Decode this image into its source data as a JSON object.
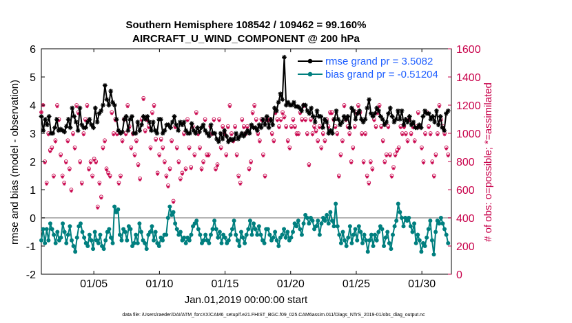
{
  "chart_data": {
    "type": "line",
    "title": "Southern Hemisphere 108542 / 109462 = 99.160%",
    "subtitle": "AIRCRAFT_U_WIND_COMPONENT @ 200 hPa",
    "ylabel": "rmse and bias (model - observation)",
    "y2label": "# of obs: o=possible; *=assimilated",
    "xlabel": "Jan.01,2019 00:00:00 start",
    "footer": "data file: /Users/raeder/DAI/ATM_forcXX/CAM6_setup/f.e21.FHIST_BGC.f09_025.CAM6assim.011/Diags_NTrS_2019-01/obs_diag_output.nc",
    "xlim": [
      1,
      32.25
    ],
    "ylim": [
      -2,
      6
    ],
    "y2lim": [
      0,
      1600
    ],
    "x_ticks": [
      5,
      10,
      15,
      20,
      25,
      30
    ],
    "x_tick_labels": [
      "01/05",
      "01/10",
      "01/15",
      "01/20",
      "01/25",
      "01/30"
    ],
    "y_ticks": [
      -2,
      -1,
      0,
      1,
      2,
      3,
      4,
      5,
      6
    ],
    "y_tick_labels": [
      "-2",
      "-1",
      "0",
      "1",
      "2",
      "3",
      "4",
      "5",
      "6"
    ],
    "y2_ticks": [
      0,
      200,
      400,
      600,
      800,
      1000,
      1200,
      1400,
      1600
    ],
    "y2_tick_labels": [
      "0",
      "200",
      "400",
      "600",
      "800",
      "1000",
      "1200",
      "1400",
      "1600"
    ],
    "legend_position": "top-right",
    "series": [
      {
        "name": "rmse grand pr = 3.5082",
        "color": "#000000",
        "marker": "asterisk",
        "values": [
          3.6,
          3.1,
          3.5,
          3.3,
          3.6,
          3.0,
          3.0,
          3.2,
          3.5,
          3.1,
          3.15,
          3.1,
          3.05,
          3.25,
          3.5,
          3.2,
          3.9,
          3.6,
          3.4,
          3.1,
          3.9,
          3.3,
          3.2,
          3.2,
          3.4,
          3.5,
          3.3,
          3.2,
          3.9,
          3.4,
          3.7,
          3.8,
          4.0,
          4.7,
          4.2,
          4.0,
          4.5,
          4.1,
          4.0,
          3.5,
          3.1,
          3.0,
          3.05,
          3.5,
          3.6,
          3.1,
          3.5,
          3.6,
          3.0,
          3.0,
          3.4,
          3.1,
          3.3,
          3.6,
          3.5,
          3.6,
          3.4,
          3.1,
          3.4,
          3.1,
          3.0,
          3.5,
          3.5,
          3.0,
          3.1,
          3.3,
          3.3,
          3.2,
          3.4,
          3.6,
          3.3,
          3.1,
          3.4,
          3.3,
          3.4,
          3.1,
          3.0,
          3.0,
          3.35,
          3.1,
          3.0,
          3.2,
          3.05,
          3.2,
          3.3,
          3.1,
          3.0,
          2.9,
          3.3,
          3.0,
          3.0,
          2.8,
          2.7,
          3.0,
          2.8,
          3.1,
          2.9,
          2.7,
          2.8,
          2.75,
          2.8,
          3.0,
          2.8,
          2.9,
          3.0,
          2.9,
          3.0,
          3.1,
          3.0,
          3.3,
          3.2,
          3.2,
          3.1,
          3.3,
          3.2,
          3.5,
          3.3,
          3.6,
          3.2,
          3.5,
          3.3,
          3.9,
          3.8,
          4.1,
          4.4,
          4.2,
          5.7,
          4.0,
          4.1,
          4.0,
          4.0,
          4.1,
          3.95,
          3.95,
          3.9,
          3.8,
          4.0,
          4.0,
          3.8,
          3.7,
          3.9,
          3.6,
          3.4,
          3.8,
          3.6,
          3.6,
          3.2,
          3.5,
          3.4,
          3.0,
          3.1,
          3.0,
          3.5,
          3.8,
          3.5,
          3.3,
          3.4,
          3.6,
          3.5,
          3.6,
          3.2,
          3.9,
          3.8,
          3.5,
          3.7,
          3.8,
          3.5,
          3.4,
          3.5,
          3.9,
          4.2,
          3.7,
          3.6,
          3.7,
          3.9,
          3.8,
          3.6,
          3.5,
          3.3,
          3.4,
          3.7,
          3.9,
          3.6,
          3.4,
          3.5,
          3.8,
          3.5,
          3.8,
          3.3,
          3.5,
          3.4,
          3.6,
          3.3,
          3.4,
          3.2,
          3.2,
          3.3,
          3.2,
          3.6,
          3.8,
          3.7,
          3.7,
          3.5,
          3.6,
          3.4,
          3.8,
          3.3,
          3.6,
          3.2,
          3.1,
          3.7,
          3.8
        ]
      },
      {
        "name": "bias grand pr = -0.51204",
        "color": "#007f7f",
        "marker": "dot",
        "values": [
          -0.8,
          -0.4,
          -0.9,
          -0.4,
          -0.8,
          -0.2,
          -0.4,
          -0.6,
          -0.9,
          -0.5,
          -0.8,
          -0.7,
          -0.2,
          -0.5,
          -0.9,
          -0.6,
          -0.3,
          -0.8,
          -1.0,
          -1.2,
          -0.7,
          -0.3,
          -0.2,
          -0.5,
          -0.7,
          -0.9,
          -1.0,
          -0.6,
          -0.8,
          -1.1,
          -0.5,
          -0.8,
          -0.9,
          -0.6,
          -1.0,
          -1.1,
          -0.8,
          -0.5,
          -0.4,
          -0.7,
          -0.9,
          0.4,
          0.2,
          0.3,
          -0.6,
          -0.8,
          -0.4,
          -0.5,
          -0.8,
          -0.3,
          -0.4,
          -1.0,
          -0.9,
          -0.6,
          -0.9,
          -0.2,
          -0.5,
          -0.8,
          -0.9,
          -1.1,
          -0.6,
          -0.5,
          -0.3,
          -0.8,
          -0.5,
          -0.9,
          -1.0,
          -0.7,
          -0.8,
          -0.6,
          -0.6,
          0.0,
          0.4,
          0.1,
          0.2,
          -0.2,
          -0.4,
          -0.6,
          -0.5,
          -0.8,
          -0.7,
          -0.9,
          -0.7,
          -0.8,
          -0.6,
          -0.3,
          -0.2,
          -0.1,
          -0.4,
          -0.6,
          -0.9,
          -0.8,
          -0.6,
          -0.8,
          -0.9,
          -0.6,
          -0.4,
          -0.1,
          -0.4,
          -0.7,
          -0.5,
          -0.9,
          -0.6,
          -0.7,
          -0.9,
          -0.8,
          -0.6,
          -0.4,
          -0.1,
          -0.6,
          -0.8,
          -1.0,
          -0.5,
          -0.7,
          -0.9,
          -0.6,
          -0.4,
          -0.1,
          -0.6,
          -0.2,
          -0.4,
          -0.6,
          -0.3,
          -0.6,
          -0.8,
          -0.9,
          -0.4,
          -0.4,
          -0.6,
          -0.8,
          -0.7,
          -0.5,
          -0.8,
          -1.0,
          -0.7,
          -0.6,
          -0.4,
          -0.7,
          -0.5,
          -0.8,
          -0.7,
          -0.5,
          -0.2,
          -0.3,
          -0.1,
          -0.4,
          -0.6,
          -0.2,
          0.1,
          0.0,
          -0.2,
          0.0,
          -0.1,
          -0.4,
          -0.3,
          -0.1,
          -0.6,
          -0.2,
          0.0,
          -0.1,
          0.1,
          -0.2,
          0.2,
          -0.1,
          -0.3,
          0.5,
          -0.3,
          -0.6,
          -0.9,
          -0.5,
          -0.8,
          -1.0,
          -0.7,
          -0.3,
          -0.9,
          -0.6,
          -0.4,
          -0.8,
          -0.3,
          -0.5,
          -0.9,
          -0.6,
          -0.8,
          -1.2,
          -0.8,
          -0.6,
          -1.0,
          -0.6,
          -0.8,
          -0.5,
          -0.3,
          -0.4,
          -1.0,
          -0.7,
          -0.5,
          -0.9,
          -1.1,
          -0.6,
          -0.3,
          -0.1,
          0.5,
          0.2,
          0.0,
          -0.3,
          0.0,
          -0.1,
          0.0,
          -0.3,
          -0.5,
          -0.2,
          -0.9,
          -0.6,
          -0.8,
          -1.2,
          -0.9,
          -1.0,
          -0.7,
          -0.4,
          -0.1,
          -0.8,
          -1.3,
          -0.5,
          -0.1,
          -0.2,
          0.0,
          -0.2,
          -0.4,
          -0.6,
          -0.9
        ]
      }
    ],
    "obs_counts": {
      "possible": [
        1150,
        1200,
        800,
        650,
        1000,
        880,
        900,
        700,
        950,
        1200,
        1100,
        850,
        700,
        650,
        800,
        950,
        750,
        600,
        1000,
        900,
        1200,
        1150,
        800,
        650,
        1000,
        1100,
        1200,
        750,
        800,
        700,
        820,
        800,
        480,
        650,
        550,
        900,
        950,
        750,
        720,
        700,
        1150,
        1000,
        1100,
        1000,
        650,
        700,
        950,
        1100,
        1000,
        1200,
        1050,
        900,
        1000,
        850,
        950,
        780,
        680,
        1100,
        1250,
        1020,
        1100,
        1050,
        900,
        1150,
        1200,
        960,
        720,
        850,
        960,
        900,
        800,
        700,
        630,
        750,
        950,
        520,
        1050,
        900,
        800,
        680,
        720,
        1000,
        750,
        1100,
        900,
        760,
        1050,
        850,
        1150,
        1000,
        900,
        750,
        800,
        1100,
        850,
        850,
        1050,
        1000,
        1100,
        750,
        780,
        1100,
        900,
        1050,
        1000,
        850,
        1050,
        1200,
        1000,
        950,
        1050,
        850,
        700,
        650,
        1100,
        1050,
        1000,
        1050,
        750,
        800,
        1150,
        1200,
        1100,
        1000,
        950,
        1100,
        850,
        700,
        1100,
        1100,
        1100,
        1000,
        950,
        1150,
        1100,
        1050,
        1100,
        1150,
        1120,
        1050,
        950,
        900,
        1050,
        1100,
        1050,
        1000,
        1000,
        1150,
        1100,
        1200,
        1100,
        1000,
        780,
        1100,
        1000,
        1050,
        1020,
        950,
        1050,
        900,
        1000,
        950,
        1100,
        1050,
        1150,
        1150,
        1100,
        1050,
        1000,
        700,
        850,
        950,
        1200,
        1100,
        1050,
        1000,
        800,
        900,
        1050,
        1150,
        1200,
        1150,
        1000,
        800,
        1000,
        700,
        650,
        800,
        750,
        1100,
        1050,
        1150,
        1200,
        1050,
        950,
        800,
        850,
        1050,
        850,
        700,
        760,
        850,
        880,
        900,
        1050,
        1000,
        1050,
        1000,
        950,
        1100,
        1000,
        1050,
        950,
        1050,
        1150,
        1050,
        900,
        800,
        1000,
        1150,
        1050,
        1000,
        800,
        700,
        850,
        1000,
        1200,
        1100,
        1050,
        1000,
        900,
        850
      ],
      "assimilated": [
        1150,
        1200,
        790,
        640,
        990,
        870,
        890,
        690,
        940,
        1190,
        1090,
        840,
        690,
        640,
        790,
        940,
        740,
        590,
        990,
        890,
        1190,
        1140,
        790,
        640,
        990,
        1090,
        1190,
        740,
        790,
        690,
        810,
        790,
        470,
        640,
        540,
        890,
        940,
        740,
        710,
        690,
        1140,
        990,
        1090,
        990,
        640,
        690,
        940,
        1090,
        990,
        1190,
        1040,
        890,
        990,
        840,
        940,
        770,
        670,
        1090,
        1240,
        1010,
        1090,
        1040,
        890,
        1140,
        1190,
        950,
        710,
        840,
        950,
        890,
        790,
        690,
        620,
        740,
        940,
        510,
        1040,
        890,
        790,
        670,
        710,
        990,
        740,
        1090,
        890,
        750,
        1040,
        840,
        1140,
        990,
        890,
        740,
        790,
        1090,
        840,
        840,
        1040,
        990,
        1090,
        740,
        770,
        1090,
        890,
        1040,
        990,
        840,
        1040,
        1190,
        990,
        940,
        1040,
        840,
        690,
        640,
        1090,
        1040,
        990,
        1040,
        740,
        790,
        1140,
        1190,
        1090,
        990,
        940,
        1090,
        840,
        690,
        1090,
        1090,
        1090,
        990,
        940,
        1140,
        1090,
        1040,
        1090,
        1140,
        1110,
        1040,
        940,
        890,
        1040,
        1090,
        1040,
        990,
        990,
        1140,
        1090,
        1190,
        1090,
        990,
        770,
        1090,
        990,
        1040,
        1010,
        940,
        1040,
        890,
        990,
        940,
        1090,
        1040,
        1140,
        1140,
        1090,
        1040,
        990,
        690,
        840,
        940,
        1190,
        1090,
        1040,
        990,
        790,
        890,
        1040,
        1140,
        1190,
        1140,
        990,
        790,
        990,
        690,
        640,
        790,
        740,
        1090,
        1040,
        1140,
        1190,
        1040,
        940,
        790,
        840,
        1040,
        840,
        690,
        750,
        840,
        870,
        890,
        1040,
        990,
        1040,
        990,
        940,
        1090,
        990,
        1040,
        940,
        1040,
        1140,
        1040,
        890,
        790,
        990,
        1140,
        1040,
        990,
        790,
        690,
        840,
        990,
        1190,
        1090,
        1040,
        990,
        890,
        840
      ],
      "color": "#c8004a"
    }
  }
}
